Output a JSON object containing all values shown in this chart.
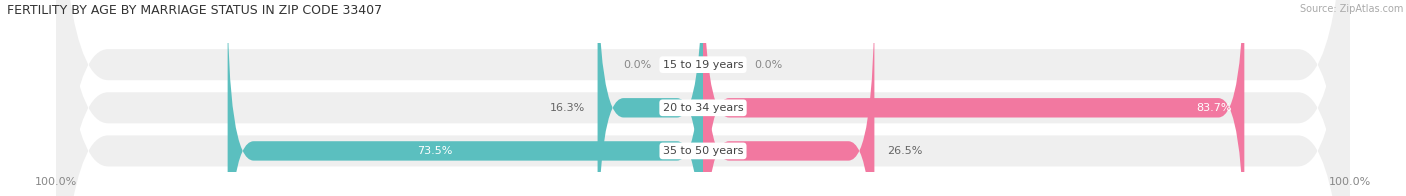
{
  "title": "FERTILITY BY AGE BY MARRIAGE STATUS IN ZIP CODE 33407",
  "source": "Source: ZipAtlas.com",
  "categories": [
    "15 to 19 years",
    "20 to 34 years",
    "35 to 50 years"
  ],
  "married_values": [
    0.0,
    16.3,
    73.5
  ],
  "unmarried_values": [
    0.0,
    83.7,
    26.5
  ],
  "married_color": "#5bbfbf",
  "unmarried_color": "#f278a0",
  "bar_bg_color": "#e4e4e4",
  "row_bg_color": "#efefef",
  "title_fontsize": 9,
  "label_fontsize": 8,
  "tick_fontsize": 8,
  "source_fontsize": 7,
  "fig_bg_color": "#ffffff",
  "value_color_outside": "#555555",
  "value_color_inside": "#ffffff"
}
